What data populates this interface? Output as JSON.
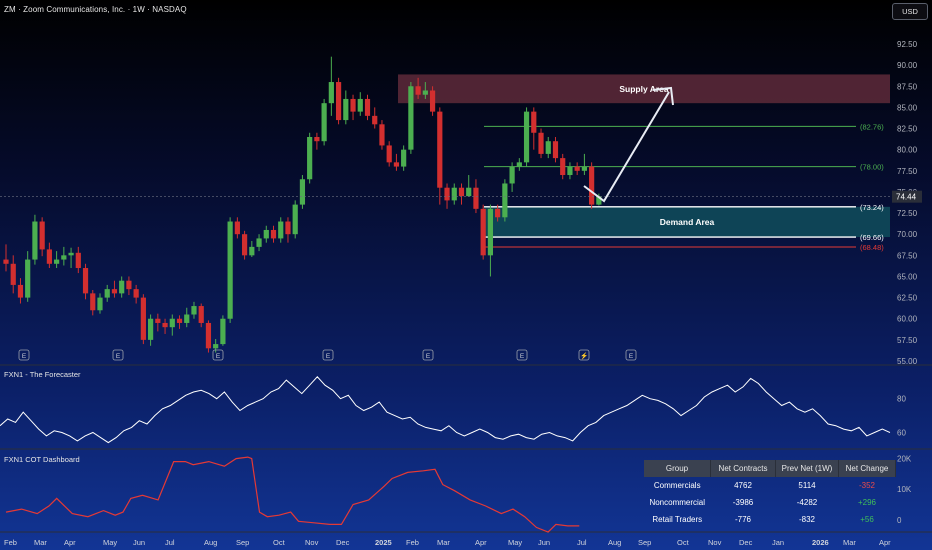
{
  "header": {
    "title": "ZM · Zoom Communications, Inc. · 1W · NASDAQ",
    "currency_button": "USD"
  },
  "colors": {
    "up": "#4caf50",
    "down": "#d32f2f",
    "supply_fill": "#5e2a3a",
    "demand_fill": "#0f4a5a",
    "level_green": "#4caf50",
    "level_red": "#e53935",
    "cot_line": "#e53935",
    "forecaster_line": "#ffffff"
  },
  "chart_data": [
    {
      "type": "candlestick",
      "name": "price",
      "ylim": [
        55.0,
        92.5
      ],
      "yticks": [
        "92.50",
        "90.00",
        "87.50",
        "85.00",
        "82.50",
        "80.00",
        "77.50",
        "75.00",
        "72.50",
        "70.00",
        "67.50",
        "65.00",
        "62.50",
        "60.00",
        "57.50",
        "55.00"
      ],
      "last_price": "74.44",
      "candles": [
        [
          67.0,
          66.5,
          68.8,
          65.6
        ],
        [
          66.5,
          64.0,
          67.5,
          63.0
        ],
        [
          64.0,
          62.5,
          64.8,
          61.8
        ],
        [
          62.5,
          67.0,
          68.0,
          62.0
        ],
        [
          67.0,
          71.5,
          72.3,
          66.4
        ],
        [
          71.5,
          68.2,
          72.0,
          67.4
        ],
        [
          68.2,
          66.5,
          69.0,
          66.0
        ],
        [
          66.5,
          67.0,
          68.0,
          66.0
        ],
        [
          67.0,
          67.5,
          68.5,
          66.3
        ],
        [
          67.5,
          67.8,
          68.4,
          66.0
        ],
        [
          67.8,
          66.0,
          68.5,
          65.4
        ],
        [
          66.0,
          63.0,
          66.5,
          62.3
        ],
        [
          63.0,
          61.0,
          63.4,
          60.4
        ],
        [
          61.0,
          62.5,
          63.0,
          60.6
        ],
        [
          62.5,
          63.5,
          64.0,
          62.0
        ],
        [
          63.5,
          63.0,
          64.5,
          62.5
        ],
        [
          63.0,
          64.5,
          65.0,
          62.5
        ],
        [
          64.5,
          63.5,
          65.0,
          62.8
        ],
        [
          63.5,
          62.5,
          64.0,
          61.8
        ],
        [
          62.5,
          57.5,
          62.9,
          57.0
        ],
        [
          57.5,
          60.0,
          60.5,
          56.8
        ],
        [
          60.0,
          59.5,
          60.6,
          58.5
        ],
        [
          59.5,
          59.0,
          60.0,
          58.2
        ],
        [
          59.0,
          60.0,
          60.5,
          58.0
        ],
        [
          60.0,
          59.5,
          60.4,
          58.8
        ],
        [
          59.5,
          60.5,
          61.3,
          59.0
        ],
        [
          60.5,
          61.5,
          62.0,
          60.0
        ],
        [
          61.5,
          59.5,
          61.8,
          59.0
        ],
        [
          59.5,
          56.5,
          59.8,
          56.0
        ],
        [
          56.5,
          57.0,
          57.6,
          56.0
        ],
        [
          57.0,
          60.0,
          60.4,
          56.8
        ],
        [
          60.0,
          71.5,
          72.0,
          59.5
        ],
        [
          71.5,
          70.0,
          72.0,
          69.5
        ],
        [
          70.0,
          67.5,
          70.4,
          67.0
        ],
        [
          67.5,
          68.5,
          69.2,
          67.3
        ],
        [
          68.5,
          69.5,
          70.0,
          68.0
        ],
        [
          69.5,
          70.5,
          71.0,
          69.0
        ],
        [
          70.5,
          69.5,
          71.0,
          69.0
        ],
        [
          69.5,
          71.5,
          72.0,
          69.0
        ],
        [
          71.5,
          70.0,
          72.0,
          69.0
        ],
        [
          70.0,
          73.5,
          74.0,
          69.5
        ],
        [
          73.5,
          76.5,
          77.0,
          73.0
        ],
        [
          76.5,
          81.5,
          82.0,
          76.0
        ],
        [
          81.5,
          81.0,
          82.0,
          80.0
        ],
        [
          81.0,
          85.5,
          86.0,
          80.5
        ],
        [
          85.5,
          88.0,
          91.0,
          84.0
        ],
        [
          88.0,
          83.5,
          88.5,
          83.0
        ],
        [
          83.5,
          86.0,
          87.0,
          83.0
        ],
        [
          86.0,
          84.5,
          86.5,
          83.5
        ],
        [
          84.5,
          86.0,
          86.8,
          84.0
        ],
        [
          86.0,
          84.0,
          86.5,
          83.5
        ],
        [
          84.0,
          83.0,
          85.0,
          82.5
        ],
        [
          83.0,
          80.5,
          83.5,
          80.0
        ],
        [
          80.5,
          78.5,
          81.0,
          78.0
        ],
        [
          78.5,
          78.0,
          79.5,
          77.5
        ],
        [
          78.0,
          80.0,
          80.5,
          77.5
        ],
        [
          80.0,
          87.5,
          88.0,
          79.5
        ],
        [
          87.5,
          86.5,
          88.5,
          86.0
        ],
        [
          86.5,
          87.0,
          88.0,
          86.0
        ],
        [
          87.0,
          84.5,
          87.5,
          84.0
        ],
        [
          84.5,
          75.5,
          85.0,
          73.5
        ],
        [
          75.5,
          74.0,
          76.0,
          73.0
        ],
        [
          74.0,
          75.5,
          76.0,
          73.5
        ],
        [
          75.5,
          74.5,
          76.0,
          73.5
        ],
        [
          74.5,
          75.5,
          77.0,
          74.5
        ],
        [
          75.5,
          73.0,
          76.5,
          72.5
        ],
        [
          73.0,
          67.5,
          73.5,
          67.0
        ],
        [
          67.5,
          73.0,
          73.5,
          65.0
        ],
        [
          73.0,
          72.0,
          73.5,
          71.5
        ],
        [
          72.0,
          76.0,
          76.5,
          71.5
        ],
        [
          76.0,
          78.0,
          78.5,
          75.0
        ],
        [
          78.0,
          78.5,
          79.0,
          77.5
        ],
        [
          78.5,
          84.5,
          85.0,
          78.0
        ],
        [
          84.5,
          82.0,
          85.0,
          80.0
        ],
        [
          82.0,
          79.5,
          82.5,
          79.0
        ],
        [
          79.5,
          81.0,
          81.5,
          79.0
        ],
        [
          81.0,
          79.0,
          81.5,
          78.5
        ],
        [
          79.0,
          77.0,
          79.5,
          76.5
        ],
        [
          77.0,
          78.0,
          78.5,
          76.5
        ],
        [
          78.0,
          77.5,
          78.5,
          77.0
        ],
        [
          77.5,
          78.0,
          79.5,
          77.0
        ],
        [
          78.0,
          73.5,
          78.5,
          73.0
        ],
        [
          73.5,
          74.5,
          74.8,
          73.4
        ]
      ],
      "levels": [
        {
          "label": "(82.76)",
          "value": 82.76,
          "color": "green"
        },
        {
          "label": "(78.00)",
          "value": 78.0,
          "color": "green"
        },
        {
          "label": "(73.24)",
          "value": 73.24,
          "color": "white"
        },
        {
          "label": "(69.66)",
          "value": 69.66,
          "color": "white"
        },
        {
          "label": "(68.48)",
          "value": 68.48,
          "color": "red"
        }
      ],
      "zones": [
        {
          "label": "Supply Area",
          "from": 85.5,
          "to": 88.9
        },
        {
          "label": "Demand Area",
          "from": 69.66,
          "to": 73.24
        }
      ],
      "earnings_markers": [
        "E",
        "E",
        "E",
        "E",
        "E",
        "E",
        "⚡",
        "E"
      ]
    },
    {
      "type": "line",
      "name": "forecaster",
      "title": "FXN1 - The Forecaster",
      "ylim": [
        52,
        97
      ],
      "yticks": [
        "80",
        "60"
      ],
      "values": [
        64,
        68,
        66,
        72,
        67,
        62,
        58,
        61,
        60,
        58,
        55,
        58,
        60,
        57,
        54,
        57,
        61,
        63,
        67,
        65,
        70,
        74,
        76,
        79,
        82,
        84,
        85,
        83,
        80,
        84,
        78,
        73,
        76,
        78,
        80,
        84,
        86,
        91,
        87,
        83,
        88,
        93,
        88,
        85,
        80,
        82,
        76,
        73,
        75,
        78,
        72,
        70,
        68,
        69,
        65,
        63,
        62,
        61,
        64,
        60,
        58,
        60,
        62,
        60,
        57,
        56,
        58,
        59,
        57,
        56,
        59,
        60,
        58,
        57,
        55,
        60,
        64,
        66,
        70,
        72,
        74,
        76,
        79,
        82,
        80,
        79,
        77,
        74,
        70,
        73,
        76,
        81,
        84,
        86,
        88,
        84,
        87,
        92,
        89,
        84,
        80,
        76,
        78,
        74,
        72,
        74,
        70,
        65,
        64,
        62,
        61,
        63,
        58,
        60,
        62,
        60
      ],
      "x_range": [
        0,
        164
      ]
    },
    {
      "type": "line",
      "name": "cot",
      "title": "FXN1 COT Dashboard",
      "ylim": [
        -4000,
        21500
      ],
      "yticks": [
        "20K",
        "10K",
        "0"
      ],
      "values": [
        [
          0,
          2500
        ],
        [
          8,
          3500
        ],
        [
          16,
          2000
        ],
        [
          22,
          4500
        ],
        [
          26,
          7000
        ],
        [
          34,
          2000
        ],
        [
          42,
          1000
        ],
        [
          50,
          3000
        ],
        [
          56,
          1500
        ],
        [
          60,
          2500
        ],
        [
          64,
          7000
        ],
        [
          70,
          8000
        ],
        [
          78,
          6500
        ],
        [
          86,
          19000
        ],
        [
          92,
          19000
        ],
        [
          96,
          18000
        ],
        [
          104,
          19000
        ],
        [
          112,
          17500
        ],
        [
          118,
          20000
        ],
        [
          124,
          20500
        ],
        [
          126,
          20000
        ],
        [
          130,
          2500
        ],
        [
          134,
          1000
        ],
        [
          140,
          1500
        ],
        [
          146,
          2500
        ],
        [
          150,
          -500
        ],
        [
          158,
          -1000
        ],
        [
          166,
          -1500
        ],
        [
          172,
          -1500
        ],
        [
          178,
          5000
        ],
        [
          186,
          6500
        ],
        [
          194,
          11000
        ],
        [
          198,
          13500
        ],
        [
          206,
          15500
        ],
        [
          214,
          16000
        ],
        [
          220,
          16500
        ],
        [
          224,
          11500
        ],
        [
          230,
          9500
        ],
        [
          238,
          6500
        ],
        [
          246,
          4500
        ],
        [
          254,
          2000
        ],
        [
          260,
          3500
        ],
        [
          266,
          1000
        ],
        [
          272,
          -2500
        ],
        [
          278,
          -4000
        ],
        [
          282,
          -1500
        ],
        [
          288,
          -2000
        ],
        [
          294,
          -2000
        ]
      ]
    }
  ],
  "x_axis": {
    "labels": [
      "Feb",
      "Mar",
      "Apr",
      "May",
      "Jun",
      "Jul",
      "Aug",
      "Sep",
      "Oct",
      "Nov",
      "Dec",
      "2025",
      "Feb",
      "Mar",
      "Apr",
      "May",
      "Jun",
      "Jul",
      "Aug",
      "Sep",
      "Oct",
      "Nov",
      "Dec",
      "Jan",
      "2026",
      "Mar",
      "Apr"
    ]
  },
  "cot_table": {
    "headers": [
      "Group",
      "Net Contracts",
      "Prev Net (1W)",
      "Net Change"
    ],
    "rows": [
      {
        "group": "Commercials",
        "net": "4762",
        "prev": "5114",
        "change": "-352",
        "sign": "neg"
      },
      {
        "group": "Noncommercial",
        "net": "-3986",
        "prev": "-4282",
        "change": "+296",
        "sign": "pos"
      },
      {
        "group": "Retail Traders",
        "net": "-776",
        "prev": "-832",
        "change": "+56",
        "sign": "pos"
      }
    ]
  }
}
